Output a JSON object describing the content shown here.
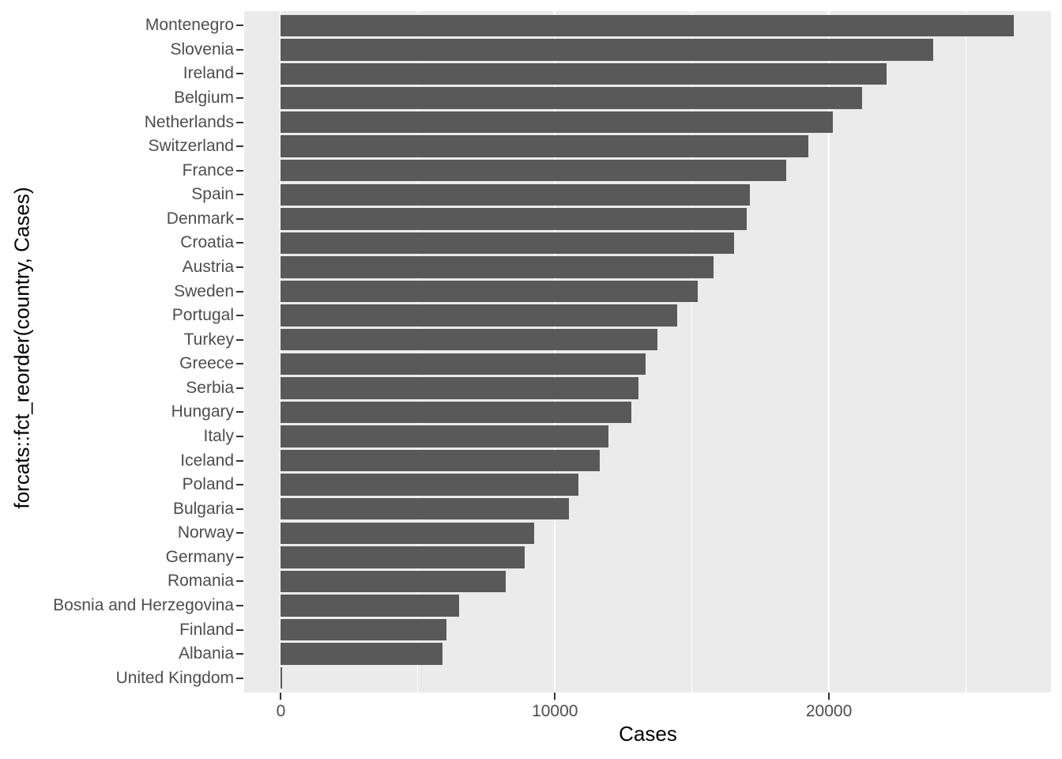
{
  "chart_data": {
    "type": "bar",
    "orientation": "horizontal",
    "title": "",
    "xlabel": "Cases",
    "ylabel": "forcats::fct_reorder(country, Cases)",
    "categories": [
      "Montenegro",
      "Slovenia",
      "Ireland",
      "Belgium",
      "Netherlands",
      "Switzerland",
      "France",
      "Spain",
      "Denmark",
      "Croatia",
      "Austria",
      "Sweden",
      "Portugal",
      "Turkey",
      "Greece",
      "Serbia",
      "Hungary",
      "Italy",
      "Iceland",
      "Poland",
      "Bulgaria",
      "Norway",
      "Germany",
      "Romania",
      "Bosnia and Herzegovina",
      "Finland",
      "Albania",
      "United Kingdom"
    ],
    "values": [
      26750,
      23800,
      22100,
      21200,
      20150,
      19250,
      18450,
      17100,
      17000,
      16550,
      15800,
      15200,
      14450,
      13750,
      13300,
      13050,
      12800,
      11950,
      11650,
      10850,
      10500,
      9250,
      8900,
      8200,
      6500,
      6050,
      5900,
      30
    ],
    "x_ticks": [
      0,
      10000,
      20000
    ],
    "x_tick_labels": [
      "0",
      "10000",
      "20000"
    ],
    "x_minor_ticks": [
      5000,
      15000,
      25000
    ],
    "xlim": [
      -1340,
      28100
    ],
    "grid": "major-and-minor-vertical",
    "legend": "none",
    "colors": {
      "bar_fill": "#595959",
      "panel_background": "#EBEBEB",
      "grid_line": "#FFFFFF",
      "tick_label": "#4D4D4D",
      "axis_title": "#000000",
      "tick_mark": "#333333"
    }
  }
}
